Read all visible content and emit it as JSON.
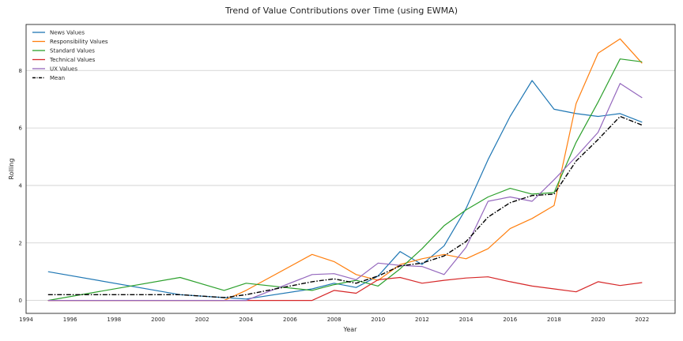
{
  "chart_data": {
    "type": "line",
    "title": "Trend of Value Contributions over Time (using EWMA)",
    "xlabel": "Year",
    "ylabel": "Rolling",
    "xlim": [
      1994,
      2023.5
    ],
    "ylim": [
      -0.45,
      9.6
    ],
    "xticks": [
      1994,
      1996,
      1998,
      2000,
      2002,
      2004,
      2006,
      2008,
      2010,
      2012,
      2014,
      2016,
      2018,
      2020,
      2022
    ],
    "yticks": [
      0,
      2,
      4,
      6,
      8
    ],
    "grid": "horizontal",
    "legend_position": "top-left",
    "x": [
      1995,
      2001,
      2003,
      2004,
      2007,
      2008,
      2009,
      2010,
      2011,
      2012,
      2013,
      2014,
      2015,
      2016,
      2017,
      2018,
      2019,
      2020,
      2021,
      2022
    ],
    "series": [
      {
        "name": "News Values",
        "color": "#1f77b4",
        "style": "solid",
        "values": [
          1.0,
          0.2,
          0.1,
          0.05,
          0.4,
          0.6,
          0.45,
          0.85,
          1.7,
          1.25,
          1.9,
          3.2,
          4.9,
          6.4,
          7.65,
          6.65,
          6.5,
          6.4,
          6.5,
          6.2
        ]
      },
      {
        "name": "Responsibility Values",
        "color": "#ff7f0e",
        "style": "solid",
        "values": [
          0.0,
          0.0,
          0.0,
          0.35,
          1.6,
          1.35,
          0.9,
          0.7,
          1.25,
          1.45,
          1.6,
          1.45,
          1.8,
          2.5,
          2.85,
          3.3,
          6.85,
          8.6,
          9.1,
          8.25
        ]
      },
      {
        "name": "Standard Values",
        "color": "#2ca02c",
        "style": "solid",
        "values": [
          0.0,
          0.8,
          0.35,
          0.6,
          0.35,
          0.55,
          0.7,
          0.5,
          1.1,
          1.8,
          2.6,
          3.15,
          3.6,
          3.9,
          3.7,
          3.75,
          5.5,
          6.9,
          8.4,
          8.3
        ]
      },
      {
        "name": "Technical Values",
        "color": "#d62728",
        "style": "solid",
        "values": [
          0.0,
          0.0,
          0.0,
          0.0,
          0.0,
          0.35,
          0.25,
          0.72,
          0.8,
          0.6,
          0.7,
          0.78,
          0.82,
          0.65,
          0.5,
          0.4,
          0.3,
          0.65,
          0.52,
          0.62
        ]
      },
      {
        "name": "UX Values",
        "color": "#9467bd",
        "style": "solid",
        "values": [
          0.0,
          0.0,
          0.0,
          0.0,
          0.9,
          0.93,
          0.72,
          1.3,
          1.22,
          1.18,
          0.9,
          1.85,
          3.45,
          3.6,
          3.45,
          4.2,
          5.0,
          5.85,
          7.55,
          7.05
        ]
      },
      {
        "name": "Mean",
        "color": "#000000",
        "style": "dashdot",
        "values": [
          0.2,
          0.2,
          0.1,
          0.2,
          0.65,
          0.75,
          0.6,
          0.85,
          1.2,
          1.3,
          1.55,
          2.05,
          2.9,
          3.4,
          3.65,
          3.7,
          4.85,
          5.6,
          6.4,
          6.1
        ]
      }
    ]
  }
}
